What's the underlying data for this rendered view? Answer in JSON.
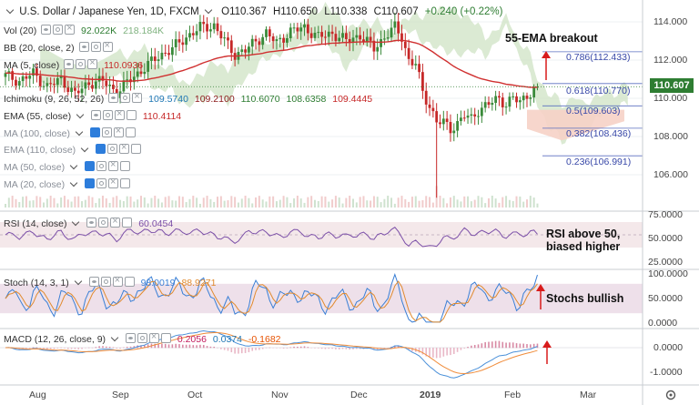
{
  "header": {
    "symbol": "U.S. Dollar / Japanese Yen, 1D, FXCM",
    "open": "O110.367",
    "high": "H110.650",
    "low": "L110.338",
    "close": "C110.607",
    "change": "+0.240 (+0.22%)"
  },
  "indicators": {
    "vol": {
      "label": "Vol (20)",
      "v1": "92.022K",
      "v2": "218.184K"
    },
    "bb": {
      "label": "BB (20, close, 2)"
    },
    "ma5": {
      "label": "MA (5, close)",
      "v1": "110.0936"
    },
    "ichimoku": {
      "label": "Ichimoku (9, 26, 52, 26)",
      "v1": "109.5740",
      "v2": "109.2100",
      "v3": "110.6070",
      "v4": "108.6358",
      "v5": "109.4445"
    },
    "ema55": {
      "label": "EMA (55, close)",
      "v1": "110.4114"
    },
    "ma100": {
      "label": "MA (100, close)"
    },
    "ema110": {
      "label": "EMA (110, close)"
    },
    "ma50": {
      "label": "MA (50, close)"
    },
    "ma20": {
      "label": "MA (20, close)"
    }
  },
  "panes": {
    "rsi": {
      "label": "RSI (14, close)",
      "value": "60.0454"
    },
    "stoch": {
      "label": "Stoch (14, 3, 1)",
      "k": "98.0019",
      "d": "88.9271"
    },
    "macd": {
      "label": "MACD (12, 26, close, 9)",
      "hist": "0.2056",
      "macd": "0.0374",
      "signal": "-0.1682"
    }
  },
  "annotations": {
    "ema_breakout": "55-EMA breakout",
    "rsi_note_line1": "RSI above 50,",
    "rsi_note_line2": "biased higher",
    "stoch_note": "Stochs bullish"
  },
  "fib_levels": [
    {
      "label": "0.786(112.433)",
      "price": 112.433
    },
    {
      "label": "0.618(110.770)",
      "price": 110.77
    },
    {
      "label": "0.5(109.603)",
      "price": 109.603
    },
    {
      "label": "0.382(108.436)",
      "price": 108.436
    },
    {
      "label": "0.236(106.991)",
      "price": 106.991
    }
  ],
  "price_axis": {
    "ticks": [
      "114.000",
      "112.000",
      "110.000",
      "108.000",
      "106.000"
    ],
    "tick_values": [
      114,
      112,
      110,
      108,
      106
    ],
    "current_price": "110.607",
    "current_value": 110.607
  },
  "rsi_axis": {
    "ticks": [
      "75.0000",
      "50.0000",
      "25.0000"
    ]
  },
  "stoch_axis": {
    "ticks": [
      "100.0000",
      "50.0000",
      "0.0000"
    ]
  },
  "macd_axis": {
    "ticks": [
      "0.0000",
      "-1.0000"
    ]
  },
  "time_axis": {
    "labels": [
      "Aug",
      "Sep",
      "Oct",
      "Nov",
      "Dec",
      "2019",
      "Feb",
      "Mar"
    ]
  },
  "colors": {
    "up": "#3a8a3a",
    "down": "#c62828",
    "ema55": "#d03030",
    "cloud_bull": "#cfe3c4",
    "cloud_bear": "#f6d2c6",
    "rsi": "#7b4fa8",
    "stoch_k": "#3a7fd5",
    "stoch_d": "#e08a2e",
    "accent_arrow": "#d81b1b"
  },
  "chart_data": {
    "type": "candlestick",
    "close_path": [
      [
        0,
        111.2
      ],
      [
        4,
        110.9
      ],
      [
        8,
        111.3
      ],
      [
        12,
        110.6
      ],
      [
        16,
        111.0
      ],
      [
        20,
        110.2
      ],
      [
        24,
        110.8
      ],
      [
        28,
        110.9
      ],
      [
        32,
        110.3
      ],
      [
        36,
        111.0
      ],
      [
        40,
        111.6
      ],
      [
        44,
        112.2
      ],
      [
        48,
        112.6
      ],
      [
        52,
        113.2
      ],
      [
        56,
        113.7
      ],
      [
        60,
        113.8
      ],
      [
        63,
        113.0
      ],
      [
        66,
        112.3
      ],
      [
        69,
        112.5
      ],
      [
        72,
        113.0
      ],
      [
        75,
        113.4
      ],
      [
        78,
        112.9
      ],
      [
        82,
        113.5
      ],
      [
        86,
        113.7
      ],
      [
        90,
        113.2
      ],
      [
        94,
        113.4
      ],
      [
        98,
        113.0
      ],
      [
        102,
        113.3
      ],
      [
        106,
        112.6
      ],
      [
        110,
        113.4
      ],
      [
        112,
        113.7
      ],
      [
        114,
        113.2
      ],
      [
        116,
        112.0
      ],
      [
        118,
        111.8
      ],
      [
        120,
        110.3
      ],
      [
        122,
        109.6
      ],
      [
        124,
        108.8
      ],
      [
        126,
        108.7
      ],
      [
        128,
        108.4
      ],
      [
        130,
        108.7
      ],
      [
        132,
        109.1
      ],
      [
        134,
        108.9
      ],
      [
        136,
        109.4
      ],
      [
        138,
        109.6
      ],
      [
        140,
        109.8
      ],
      [
        142,
        110.0
      ],
      [
        144,
        109.7
      ],
      [
        146,
        110.0
      ],
      [
        148,
        109.8
      ],
      [
        150,
        110.2
      ],
      [
        152,
        110.4
      ],
      [
        153,
        110.607
      ]
    ],
    "ymin": 104.5,
    "ymax": 115.5
  }
}
